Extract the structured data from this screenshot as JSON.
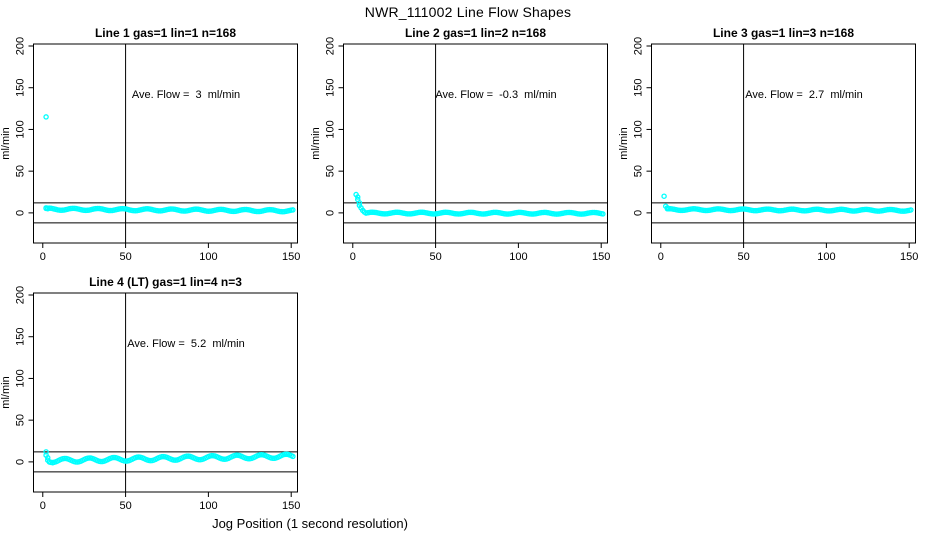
{
  "page": {
    "main_title": "NWR_111002  Line Flow Shapes",
    "x_axis_title": "Jog Position (1 second resolution)"
  },
  "style": {
    "point_color": "#00ffff",
    "line_color": "#000000",
    "background": "#ffffff"
  },
  "axes": {
    "xlim": [
      -5.6,
      153.8
    ],
    "ylim": [
      -36.1,
      202.4
    ],
    "x_ticks": [
      0,
      50,
      100,
      150
    ],
    "y_ticks": [
      0,
      50,
      100,
      150,
      200
    ],
    "y_label": "ml/min",
    "h_ref_lines": [
      12,
      -12
    ],
    "v_ref_line": 50,
    "grid": false
  },
  "chart_data": [
    {
      "type": "scatter",
      "title": "Line 1 gas=1 lin=1 n=168",
      "annotation": "Ave. Flow =  3  ml/min",
      "ave_flow_ml_min": 3,
      "n": 168,
      "ylabel": "ml/min",
      "head_points": [
        [
          2,
          115
        ],
        [
          2,
          6
        ],
        [
          3,
          5
        ]
      ],
      "band": {
        "x_start": 2,
        "x_end": 151,
        "y_start": 4.5,
        "y_end": 2.5,
        "noise": 1.2
      }
    },
    {
      "type": "scatter",
      "title": "Line 2 gas=1 lin=2 n=168",
      "annotation": "Ave. Flow =  -0.3  ml/min",
      "ave_flow_ml_min": -0.3,
      "n": 168,
      "ylabel": "ml/min",
      "head_points": [
        [
          2,
          22
        ],
        [
          3,
          19
        ],
        [
          3,
          16
        ],
        [
          4,
          12
        ],
        [
          4,
          9
        ],
        [
          5,
          6
        ],
        [
          6,
          3
        ],
        [
          7,
          1
        ]
      ],
      "band": {
        "x_start": 8,
        "x_end": 151,
        "y_start": -0.2,
        "y_end": -0.5,
        "noise": 1.0
      }
    },
    {
      "type": "scatter",
      "title": "Line 3 gas=1 lin=3 n=168",
      "annotation": "Ave. Flow =  2.7  ml/min",
      "ave_flow_ml_min": 2.7,
      "n": 168,
      "ylabel": "ml/min",
      "head_points": [
        [
          2,
          20
        ],
        [
          3,
          8
        ],
        [
          4,
          6
        ],
        [
          5,
          5
        ]
      ],
      "band": {
        "x_start": 4,
        "x_end": 151,
        "y_start": 4,
        "y_end": 3,
        "noise": 1.0
      }
    },
    {
      "type": "scatter",
      "title": "Line 4 (LT) gas=1 lin=4 n=3",
      "annotation": "Ave. Flow =  5.2  ml/min",
      "ave_flow_ml_min": 5.2,
      "n": 3,
      "ylabel": "ml/min",
      "head_points": [
        [
          2,
          12
        ],
        [
          2,
          8
        ],
        [
          3,
          5
        ],
        [
          3,
          2
        ],
        [
          4,
          0
        ],
        [
          6,
          -1
        ]
      ],
      "band": {
        "x_start": 4,
        "x_end": 151,
        "y_start": 1.5,
        "y_end": 7,
        "noise": 2.3
      }
    }
  ]
}
